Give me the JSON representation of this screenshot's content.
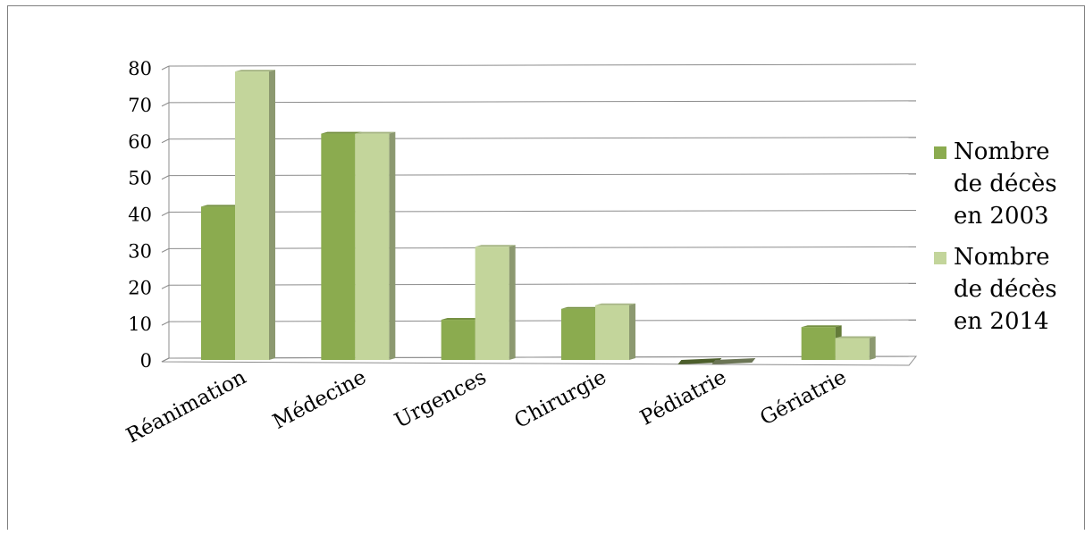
{
  "chart_data": {
    "type": "bar",
    "categories": [
      "Réanimation",
      "Médecine",
      "Urgences",
      "Chirurgie",
      "Pédiatrie",
      "Gériatrie"
    ],
    "series": [
      {
        "name": "Nombre de décès en 2003",
        "name_lines": [
          "Nombre",
          "de décès",
          "en 2003"
        ],
        "color": "#8bab4f",
        "values": [
          42,
          62,
          11,
          14,
          0,
          9
        ]
      },
      {
        "name": "Nombre de décès en 2014",
        "name_lines": [
          "Nombre",
          "de décès",
          "en 2014"
        ],
        "color": "#c3d59b",
        "values": [
          79,
          62,
          31,
          15,
          0,
          6
        ]
      }
    ],
    "yticks": [
      0,
      10,
      20,
      30,
      40,
      50,
      60,
      70,
      80
    ],
    "ylim": [
      0,
      80
    ],
    "grid": true,
    "legend_position": "right"
  }
}
